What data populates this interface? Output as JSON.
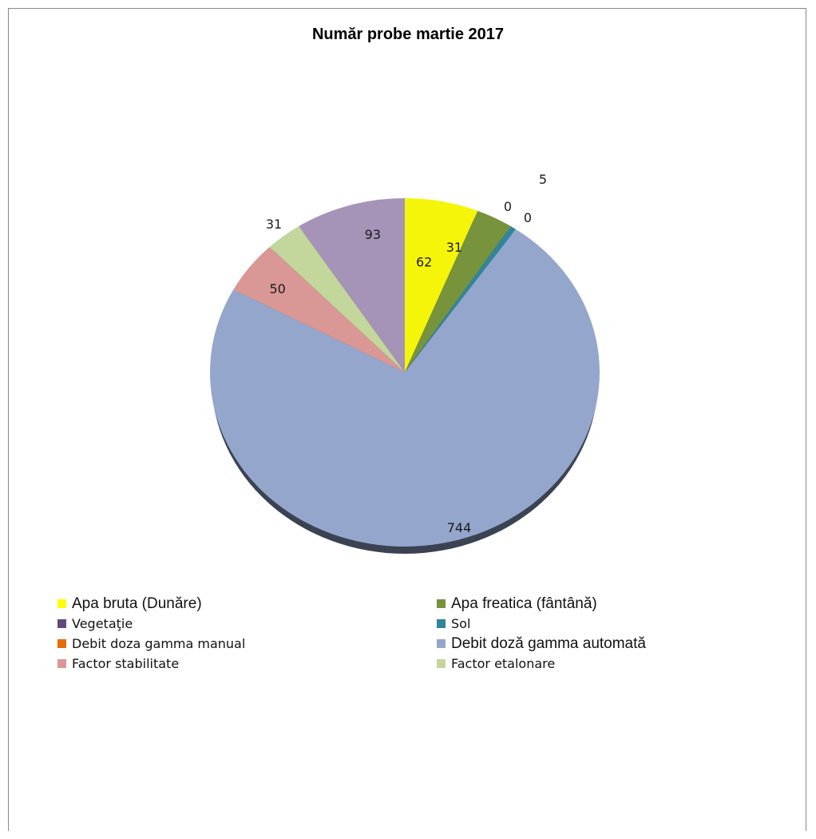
{
  "chart_data": {
    "type": "pie",
    "title": "Număr probe  martie 2017",
    "slices": [
      {
        "label": "Apa bruta (Dunăre)",
        "value": 62,
        "color": "#f5f50a",
        "value_label": "62"
      },
      {
        "label": "Apa freatica (fântână)",
        "value": 31,
        "color": "#77933c",
        "value_label": "31"
      },
      {
        "label": "Sol",
        "value": 5,
        "color": "#31859c",
        "value_label": "5"
      },
      {
        "label": "Debit  doza gamma manual",
        "value": 0,
        "color": "#e46c0a",
        "value_label": "0"
      },
      {
        "label": "Debit doză gamma automată",
        "value": 744,
        "color": "#95a6cc",
        "value_label": "744"
      },
      {
        "label": "Factor stabilitate",
        "value": 50,
        "color": "#d99795",
        "value_label": "50"
      },
      {
        "label": "Factor etalonare",
        "value": 31,
        "color": "#c3d69b",
        "value_label": "31"
      },
      {
        "label": "Vegetaţie",
        "value": 93,
        "color": "#a593b8",
        "value_label": "93"
      }
    ],
    "extra_labels": [
      "0"
    ],
    "legend_order": [
      [
        "Apa bruta (Dunăre)",
        "Apa freatica (fântână)"
      ],
      [
        "Vegetaţie",
        "Sol"
      ],
      [
        "Debit  doza gamma manual",
        "Debit doză gamma automată"
      ],
      [
        "Factor stabilitate",
        "Factor etalonare"
      ]
    ],
    "legend_placement": "bottom",
    "legend_colors": {
      "Apa bruta (Dunăre)": "#ffff00",
      "Apa freatica (fântână)": "#77933c",
      "Vegetaţie": "#604a7b",
      "Sol": "#31859c",
      "Debit  doza gamma manual": "#e46c0a",
      "Debit doză gamma automată": "#95a6cc",
      "Factor stabilitate": "#d99795",
      "Factor etalonare": "#c3d69b"
    }
  }
}
